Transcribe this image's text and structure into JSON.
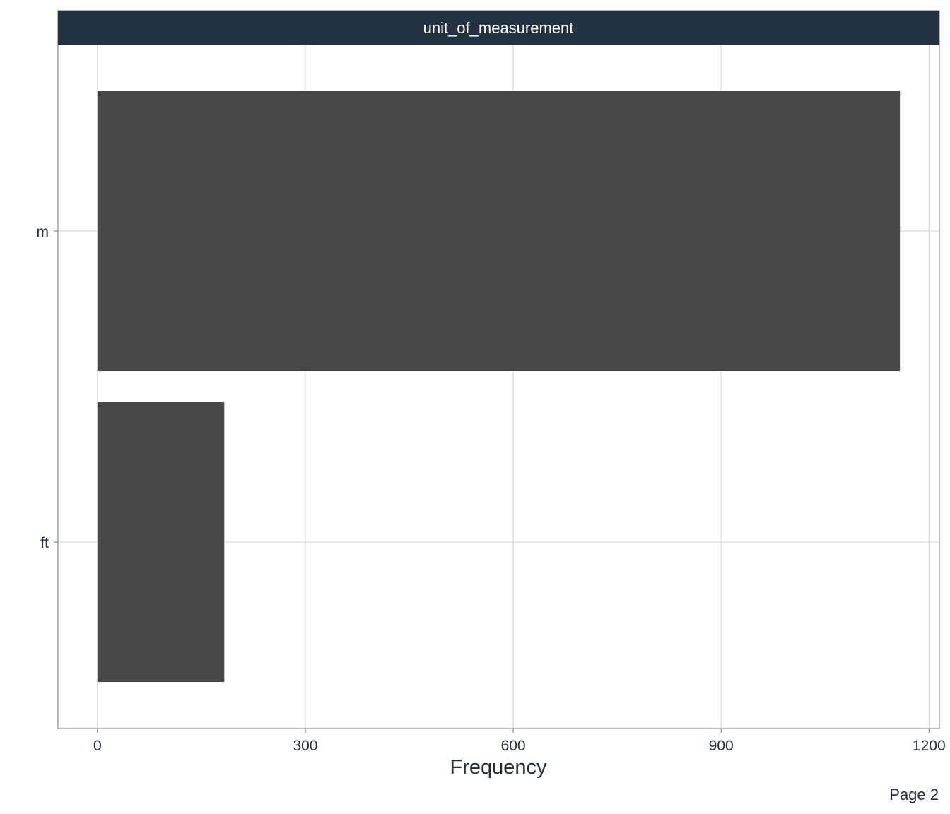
{
  "chart_data": {
    "type": "bar",
    "orientation": "horizontal",
    "facet_title": "unit_of_measurement",
    "categories": [
      "m",
      "ft"
    ],
    "values": [
      1158,
      183
    ],
    "xlabel": "Frequency",
    "ylabel": "",
    "xlim": [
      -57,
      1215
    ],
    "x_ticks": [
      0,
      300,
      600,
      900,
      1200
    ],
    "grid": true,
    "bar_color": "#474747",
    "strip_color": "#223243",
    "text_color": "#1f2d3d",
    "grid_color": "#d4d4d4"
  },
  "footer": {
    "page_label": "Page 2"
  }
}
